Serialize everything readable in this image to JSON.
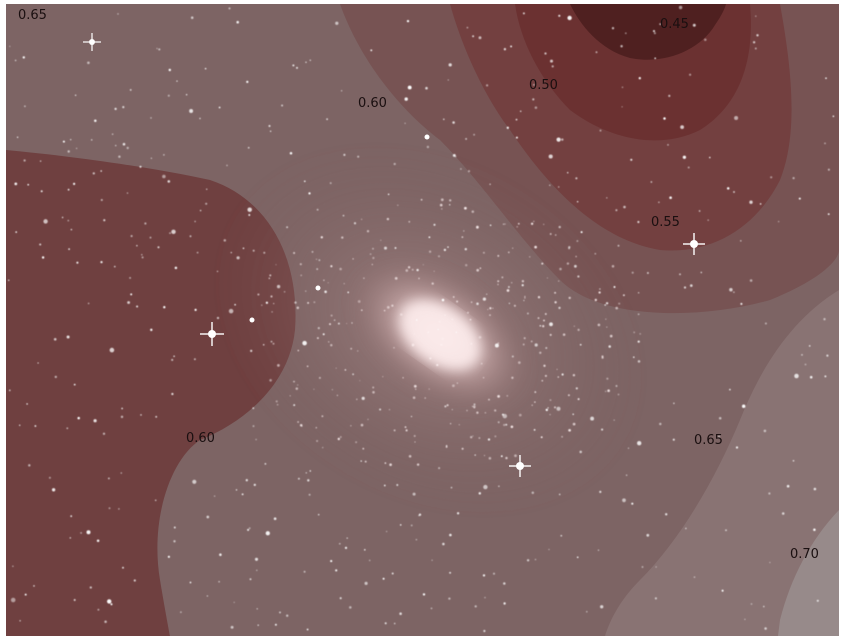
{
  "image": {
    "subject": "spiral-galaxy-starfield",
    "overlay": "contour-map"
  },
  "colors": {
    "frame": "#ffffff",
    "sky_base": "#5a4242",
    "galaxy_core": "#fbe8e8",
    "contour_045": "#4a1818",
    "contour_050": "#6a2a2a",
    "contour_055": "#7a3a3a",
    "contour_060": "#6e3838",
    "contour_065": "#8a6868",
    "contour_070": "#9a8c8c",
    "label_text": "#1a0f10"
  },
  "contour_labels": [
    {
      "text": "0.65"
    },
    {
      "text": "0.45"
    },
    {
      "text": "0.50"
    },
    {
      "text": "0.60"
    },
    {
      "text": "0.55"
    },
    {
      "text": "0.60"
    },
    {
      "text": "0.65"
    },
    {
      "text": "0.70"
    }
  ]
}
